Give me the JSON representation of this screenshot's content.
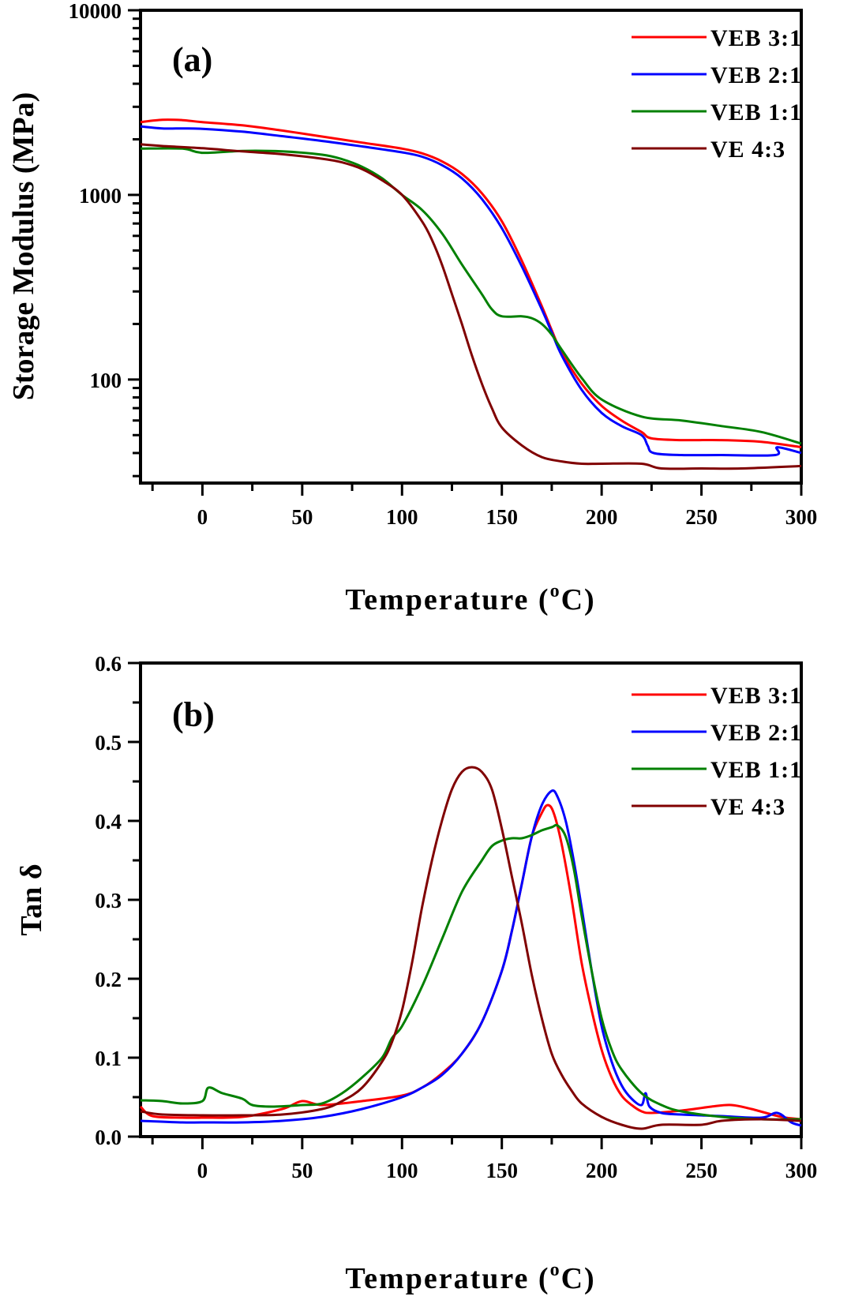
{
  "figure": {
    "panels": [
      "(a)",
      "(b)"
    ]
  },
  "chart_data": [
    {
      "type": "line",
      "panel_label": "(a)",
      "title": "",
      "xlabel": "Temperature (°C)",
      "xlabel_main": "Temperature (",
      "xlabel_sup": "o",
      "xlabel_end": "C)",
      "ylabel": "Storage Modulus (MPa)",
      "yscale": "log",
      "xlim": [
        -31,
        300
      ],
      "ylim": [
        27.5,
        10000
      ],
      "xticks": [
        0,
        50,
        100,
        150,
        200,
        250,
        300
      ],
      "xtick_labels": [
        "0",
        "50",
        "100",
        "150",
        "200",
        "250",
        "300"
      ],
      "yticks": [
        100,
        1000,
        10000
      ],
      "ytick_labels": [
        "100",
        "1000",
        "10000"
      ],
      "grid": false,
      "legend_position": "top-right",
      "series": [
        {
          "name": "VEB 3:1",
          "color": "#ff0000",
          "x": [
            -31,
            -20,
            -10,
            0,
            20,
            40,
            60,
            80,
            100,
            110,
            120,
            130,
            140,
            150,
            160,
            170,
            175,
            180,
            190,
            200,
            210,
            220,
            225,
            240,
            260,
            280,
            300
          ],
          "y": [
            2480,
            2550,
            2540,
            2480,
            2380,
            2230,
            2070,
            1920,
            1780,
            1680,
            1520,
            1300,
            1020,
            720,
            440,
            250,
            185,
            140,
            95,
            72,
            60,
            52,
            48,
            47,
            47,
            46,
            43
          ]
        },
        {
          "name": "VEB 2:1",
          "color": "#0000ff",
          "x": [
            -31,
            -20,
            -10,
            0,
            20,
            40,
            60,
            80,
            100,
            110,
            120,
            130,
            140,
            150,
            160,
            170,
            175,
            180,
            190,
            200,
            210,
            220,
            223,
            226,
            240,
            260,
            287,
            288,
            300
          ],
          "y": [
            2350,
            2290,
            2290,
            2280,
            2200,
            2080,
            1960,
            1830,
            1700,
            1610,
            1450,
            1230,
            950,
            660,
            410,
            240,
            180,
            135,
            88,
            66,
            56,
            50,
            44,
            40,
            39,
            39,
            39,
            43,
            40
          ]
        },
        {
          "name": "VEB 1:1",
          "color": "#008000",
          "x": [
            -31,
            -10,
            0,
            20,
            40,
            60,
            70,
            80,
            90,
            100,
            110,
            120,
            130,
            140,
            145,
            150,
            160,
            165,
            170,
            175,
            180,
            190,
            200,
            220,
            240,
            260,
            280,
            300
          ],
          "y": [
            1780,
            1780,
            1690,
            1730,
            1720,
            1650,
            1560,
            1420,
            1230,
            1000,
            830,
            620,
            420,
            290,
            240,
            220,
            220,
            215,
            200,
            175,
            145,
            102,
            78,
            63,
            60,
            56,
            52,
            45
          ]
        },
        {
          "name": "VE 4:3",
          "color": "#800000",
          "x": [
            -31,
            -20,
            0,
            20,
            40,
            60,
            70,
            80,
            90,
            100,
            110,
            115,
            120,
            125,
            130,
            135,
            140,
            145,
            150,
            160,
            170,
            180,
            190,
            200,
            220,
            230,
            250,
            270,
            300
          ],
          "y": [
            1880,
            1840,
            1790,
            1720,
            1660,
            1570,
            1500,
            1380,
            1200,
            1000,
            720,
            570,
            420,
            290,
            200,
            135,
            95,
            70,
            55,
            44,
            38,
            36,
            35,
            35,
            35,
            33,
            33,
            33,
            34
          ]
        }
      ]
    },
    {
      "type": "line",
      "panel_label": "(b)",
      "title": "",
      "xlabel": "Temperature (°C)",
      "xlabel_main": "Temperature (",
      "xlabel_sup": "o",
      "xlabel_end": "C)",
      "ylabel": "Tan δ",
      "yscale": "linear",
      "xlim": [
        -31,
        300
      ],
      "ylim": [
        0.0,
        0.6
      ],
      "xticks": [
        0,
        50,
        100,
        150,
        200,
        250,
        300
      ],
      "xtick_labels": [
        "0",
        "50",
        "100",
        "150",
        "200",
        "250",
        "300"
      ],
      "yticks": [
        0.0,
        0.1,
        0.2,
        0.3,
        0.4,
        0.5,
        0.6
      ],
      "ytick_labels": [
        "0.0",
        "0.1",
        "0.2",
        "0.3",
        "0.4",
        "0.5",
        "0.6"
      ],
      "grid": false,
      "legend_position": "top-right",
      "series": [
        {
          "name": "VEB 3:1",
          "color": "#ff0000",
          "x": [
            -31,
            -25,
            -10,
            0,
            20,
            40,
            50,
            60,
            80,
            100,
            110,
            120,
            130,
            140,
            150,
            155,
            160,
            165,
            170,
            173,
            176,
            180,
            185,
            190,
            195,
            200,
            205,
            210,
            215,
            220,
            225,
            240,
            255,
            265,
            275,
            290,
            300
          ],
          "y": [
            0.038,
            0.026,
            0.024,
            0.024,
            0.025,
            0.035,
            0.045,
            0.04,
            0.045,
            0.052,
            0.062,
            0.08,
            0.105,
            0.145,
            0.21,
            0.26,
            0.32,
            0.38,
            0.41,
            0.42,
            0.41,
            0.37,
            0.3,
            0.22,
            0.16,
            0.11,
            0.075,
            0.052,
            0.04,
            0.032,
            0.03,
            0.033,
            0.038,
            0.04,
            0.035,
            0.025,
            0.022
          ]
        },
        {
          "name": "VEB 2:1",
          "color": "#0000ff",
          "x": [
            -31,
            -10,
            0,
            20,
            40,
            60,
            80,
            100,
            110,
            120,
            130,
            140,
            150,
            155,
            160,
            165,
            170,
            175,
            178,
            182,
            186,
            190,
            195,
            200,
            205,
            210,
            215,
            220,
            222,
            224,
            230,
            240,
            260,
            280,
            288,
            295,
            300
          ],
          "y": [
            0.02,
            0.018,
            0.018,
            0.018,
            0.02,
            0.025,
            0.035,
            0.05,
            0.062,
            0.078,
            0.105,
            0.145,
            0.21,
            0.26,
            0.32,
            0.38,
            0.42,
            0.438,
            0.43,
            0.4,
            0.35,
            0.29,
            0.21,
            0.14,
            0.095,
            0.065,
            0.048,
            0.04,
            0.055,
            0.038,
            0.03,
            0.028,
            0.026,
            0.024,
            0.03,
            0.018,
            0.014
          ]
        },
        {
          "name": "VEB 1:1",
          "color": "#008000",
          "x": [
            -31,
            -20,
            -10,
            0,
            3,
            10,
            20,
            25,
            35,
            50,
            60,
            70,
            80,
            90,
            95,
            100,
            110,
            120,
            130,
            140,
            145,
            150,
            155,
            160,
            165,
            170,
            175,
            178,
            182,
            186,
            190,
            195,
            200,
            205,
            210,
            220,
            230,
            240,
            260,
            280,
            300
          ],
          "y": [
            0.046,
            0.045,
            0.042,
            0.045,
            0.062,
            0.055,
            0.048,
            0.04,
            0.038,
            0.04,
            0.042,
            0.055,
            0.075,
            0.1,
            0.125,
            0.14,
            0.19,
            0.25,
            0.31,
            0.35,
            0.368,
            0.375,
            0.378,
            0.378,
            0.382,
            0.388,
            0.392,
            0.394,
            0.38,
            0.34,
            0.28,
            0.21,
            0.15,
            0.11,
            0.085,
            0.055,
            0.04,
            0.032,
            0.025,
            0.022,
            0.022
          ]
        },
        {
          "name": "VE 4:3",
          "color": "#800000",
          "x": [
            -31,
            -20,
            0,
            20,
            40,
            60,
            70,
            80,
            90,
            95,
            100,
            105,
            110,
            115,
            120,
            125,
            130,
            135,
            140,
            145,
            150,
            155,
            160,
            165,
            170,
            175,
            180,
            185,
            190,
            200,
            210,
            220,
            230,
            250,
            260,
            280,
            300
          ],
          "y": [
            0.032,
            0.028,
            0.027,
            0.027,
            0.028,
            0.035,
            0.045,
            0.062,
            0.095,
            0.12,
            0.16,
            0.22,
            0.29,
            0.35,
            0.4,
            0.44,
            0.462,
            0.468,
            0.462,
            0.44,
            0.39,
            0.33,
            0.27,
            0.205,
            0.15,
            0.105,
            0.078,
            0.058,
            0.042,
            0.025,
            0.015,
            0.01,
            0.015,
            0.015,
            0.02,
            0.022,
            0.02
          ]
        }
      ]
    }
  ]
}
